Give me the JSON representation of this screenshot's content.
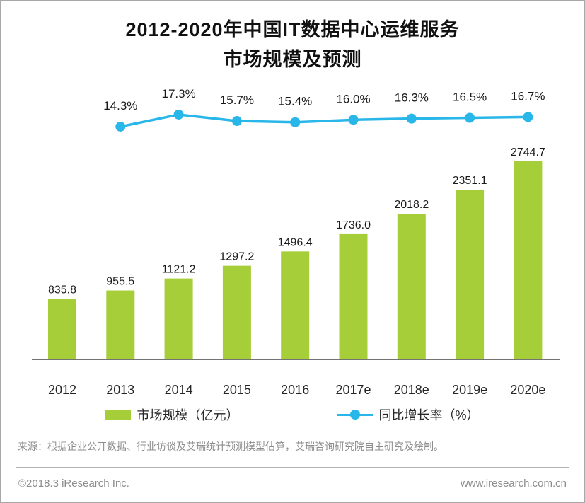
{
  "title": {
    "line1": "2012-2020年中国IT数据中心运维服务",
    "line2": "市场规模及预测"
  },
  "chart_data": {
    "type": "bar",
    "title": "2012-2020年中国IT数据中心运维服务市场规模及预测",
    "categories": [
      "2012",
      "2013",
      "2014",
      "2015",
      "2016",
      "2017e",
      "2018e",
      "2019e",
      "2020e"
    ],
    "series": [
      {
        "name": "市场规模（亿元）",
        "type": "bar",
        "color": "#a5ce38",
        "values": [
          835.8,
          955.5,
          1121.2,
          1297.2,
          1496.4,
          1736.0,
          2018.2,
          2351.1,
          2744.7
        ]
      },
      {
        "name": "同比增长率（%）",
        "type": "line",
        "color": "#29b6e8",
        "x_start_index": 1,
        "values": [
          14.3,
          17.3,
          15.7,
          15.4,
          16.0,
          16.3,
          16.5,
          16.7
        ]
      }
    ],
    "xlabel": "",
    "ylabel": "",
    "ylim": [
      0,
      2800
    ],
    "grid": false,
    "legend_position": "bottom",
    "value_labels_shown": true
  },
  "legend": {
    "bar_label": "市场规模（亿元）",
    "line_label": "同比增长率（%）"
  },
  "source_note": "来源：根据企业公开数据、行业访谈及艾瑞统计预测模型估算，艾瑞咨询研究院自主研究及绘制。",
  "footer": {
    "left": "©2018.3 iResearch Inc.",
    "right": "www.iresearch.com.cn"
  },
  "colors": {
    "bar": "#a5ce38",
    "line": "#29b6e8",
    "axis": "#737373",
    "label_text": "#1a1a1a",
    "muted_text": "#8c8c8c"
  }
}
